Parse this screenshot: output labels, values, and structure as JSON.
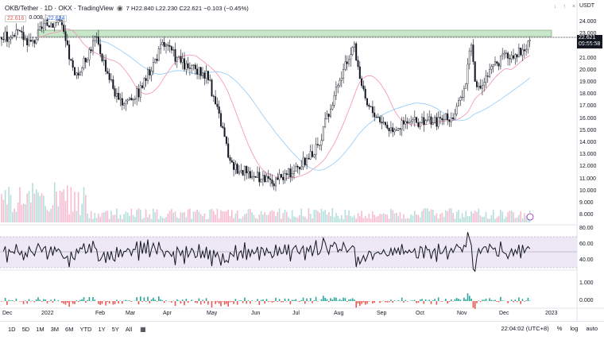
{
  "header": {
    "symbol": "OKB/Tether · 1D · OKX · TradingView",
    "ohlc": "7 H22.840 L22.230 C22.621 −0.103 (−0.45%)",
    "ind_a": "22.616",
    "ind_b": "0.008",
    "ind_c": "22.624",
    "currency": "USDT"
  },
  "price_axis": {
    "ticks": [
      "24.000",
      "23.000",
      "22.000",
      "21.000",
      "20.000",
      "19.000",
      "18.000",
      "17.000",
      "16.000",
      "15.000",
      "14.000",
      "13.000",
      "12.000",
      "11.000",
      "10.000",
      "9.000",
      "8.000"
    ],
    "last_price": "22.621",
    "countdown": "09:55:58"
  },
  "rsi_axis": {
    "ticks": [
      "80.00",
      "60.00",
      "40.00"
    ]
  },
  "macd_axis": {
    "ticks": [
      "1.000",
      "0.000"
    ]
  },
  "time_axis": {
    "labels": [
      "Dec",
      "2022",
      "Feb",
      "Mar",
      "Apr",
      "May",
      "Jun",
      "Jul",
      "Aug",
      "Sep",
      "Oct",
      "Nov",
      "Dec",
      "2023"
    ]
  },
  "bottom": {
    "timeframes": [
      "1D",
      "5D",
      "1M",
      "3M",
      "6M",
      "YTD",
      "1Y",
      "5Y",
      "All"
    ],
    "clock": "22:04:02 (UTC+8)",
    "percent": "%",
    "log": "log",
    "auto": "auto"
  },
  "chart_data": {
    "type": "line",
    "title": "OKB/Tether · 1D · OKX",
    "x": [
      "Dec",
      "2022",
      "Feb",
      "Mar",
      "Apr",
      "May",
      "Jun",
      "Jul",
      "Aug",
      "Sep",
      "Oct",
      "Nov",
      "Dec"
    ],
    "series": [
      {
        "name": "close",
        "values": [
          22.0,
          20.5,
          21.5,
          16.5,
          22.0,
          19.5,
          10.5,
          12.0,
          22.0,
          15.5,
          15.5,
          21.5,
          22.6
        ]
      }
    ],
    "ylim": [
      8,
      24.5
    ],
    "resistance_zone": [
      22.5,
      23.0
    ]
  },
  "colors": {
    "up": "#26a69a",
    "down": "#ef5350",
    "zone": "#c8e6c9",
    "rsi_band": "#ede7f6"
  }
}
